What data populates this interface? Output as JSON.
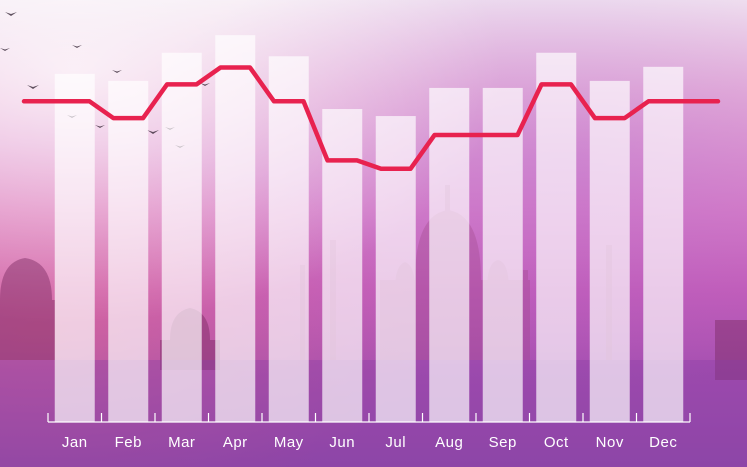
{
  "chart_data": {
    "type": "bar",
    "categories": [
      "Jan",
      "Feb",
      "Mar",
      "Apr",
      "May",
      "Jun",
      "Jul",
      "Aug",
      "Sep",
      "Oct",
      "Nov",
      "Dec"
    ],
    "series": [
      {
        "type": "bar",
        "values": [
          49.5,
          48.5,
          52.5,
          55,
          52,
          44.5,
          43.5,
          47.5,
          47.5,
          52.5,
          48.5,
          50.5
        ]
      },
      {
        "type": "line",
        "values": [
          89,
          88,
          90,
          91,
          89,
          85.5,
          85,
          87,
          87,
          90,
          88,
          89
        ]
      }
    ],
    "bar_ylim": [
      0,
      60
    ],
    "line_ylim": [
      70,
      95
    ],
    "title": "",
    "xlabel": "",
    "ylabel": "",
    "grid": false,
    "colors": {
      "bar": "#ffffff",
      "line": "#e8224f",
      "label": "#ffffff"
    }
  }
}
